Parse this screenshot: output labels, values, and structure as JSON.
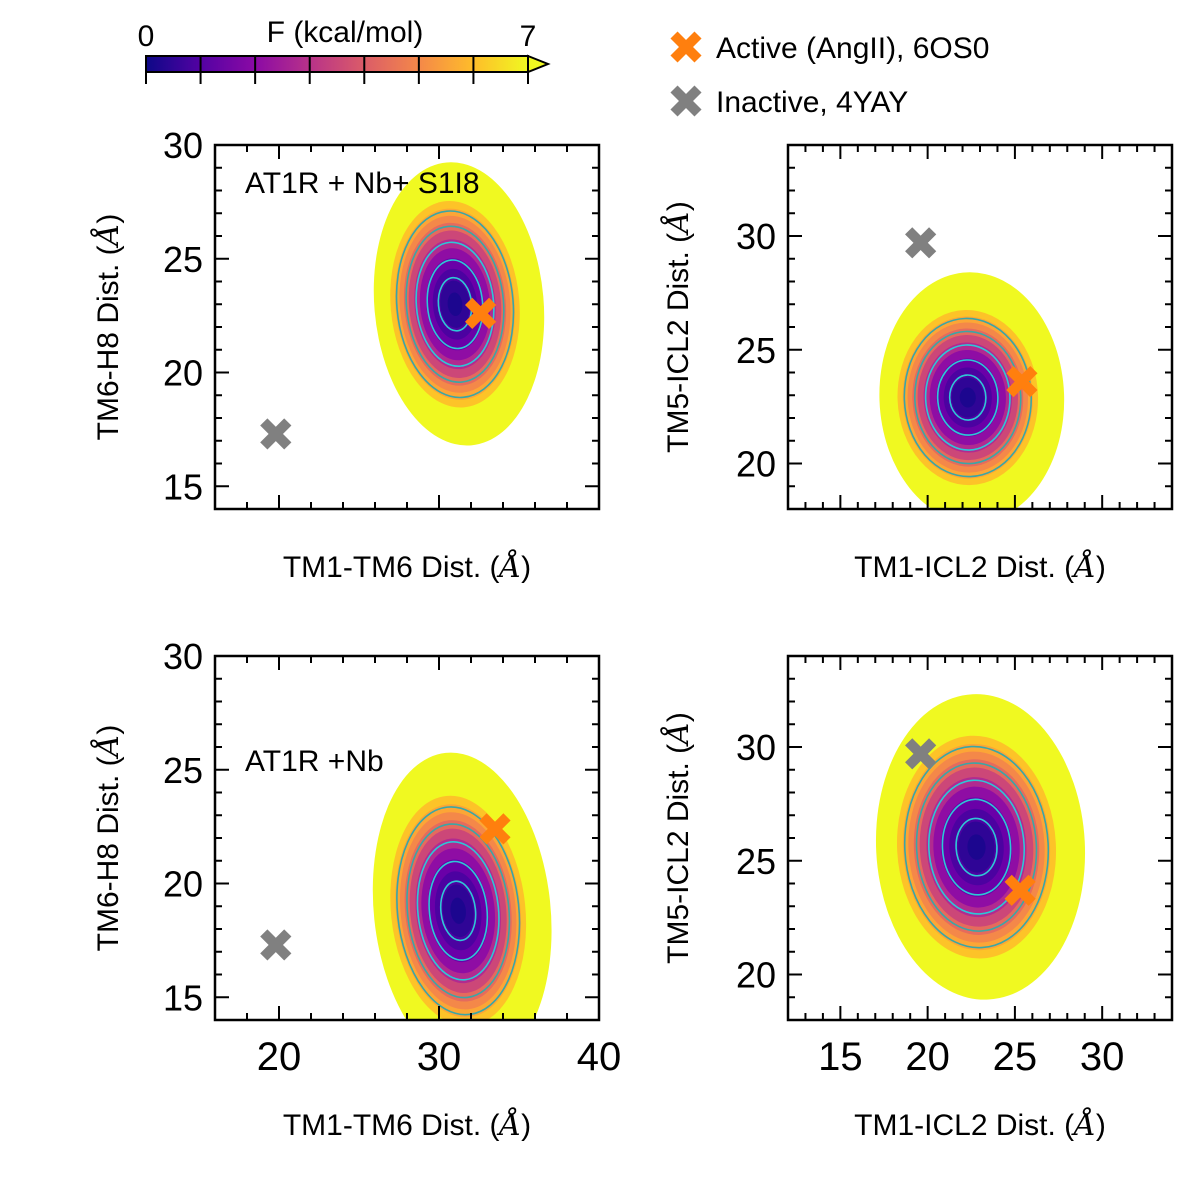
{
  "colorbar": {
    "label": "F (kcal/mol)",
    "min_label": "0",
    "max_label": "7",
    "range": [
      0,
      7
    ],
    "colormap": "plasma",
    "colors": [
      "#0d0887",
      "#5302a3",
      "#8b0aa5",
      "#b83289",
      "#db5c68",
      "#f48849",
      "#febd2a",
      "#f0f921"
    ]
  },
  "legend": {
    "items": [
      {
        "label": "Active (AngII), 6OS0",
        "color": "#ff7f0e",
        "marker": "x-mark-icon"
      },
      {
        "label": "Inactive, 4YAY",
        "color": "#808080",
        "marker": "x-mark-icon"
      }
    ]
  },
  "chart_data": [
    {
      "id": "tl",
      "type": "heatmap",
      "annotation": "AT1R + Nb+ S1I8",
      "xlabel_prefix": "TM1-TM6 Dist. (",
      "xlabel_unit": "Å",
      "xlabel_suffix": ")",
      "ylabel_prefix": "TM6-H8 Dist. (",
      "ylabel_unit": "Å",
      "ylabel_suffix": ")",
      "xlim": [
        16,
        40
      ],
      "ylim": [
        14,
        30
      ],
      "xticks": [
        20,
        30,
        40
      ],
      "xtick_labels": [],
      "yticks": [
        15,
        20,
        25,
        30
      ],
      "ytick_labels": [
        "15",
        "20",
        "25",
        "30"
      ],
      "basin": {
        "center": [
          31,
          23
        ],
        "sigma": [
          2.3,
          2.6
        ],
        "extent": [
          2.3,
          2.4
        ],
        "tilt": 0.25
      },
      "markers": [
        {
          "name": "active-marker",
          "x": 32.6,
          "y": 22.6,
          "color": "#ff7f0e"
        },
        {
          "name": "inactive-marker",
          "x": 19.8,
          "y": 17.3,
          "color": "#808080"
        }
      ]
    },
    {
      "id": "tr",
      "type": "heatmap",
      "annotation": "",
      "xlabel_prefix": "TM1-ICL2 Dist. (",
      "xlabel_unit": "Å",
      "xlabel_suffix": ")",
      "ylabel_prefix": "TM5-ICL2 Dist. (",
      "ylabel_unit": "Å",
      "ylabel_suffix": ")",
      "xlim": [
        12,
        34
      ],
      "ylim": [
        18,
        34
      ],
      "xticks": [
        15,
        20,
        25,
        30
      ],
      "xtick_labels": [],
      "yticks": [
        20,
        25,
        30
      ],
      "ytick_labels": [
        "20",
        "25",
        "30"
      ],
      "basin": {
        "center": [
          22.3,
          22.9
        ],
        "sigma": [
          2.3,
          2.2
        ],
        "extent": [
          2.3,
          2.5
        ],
        "tilt": 0.1
      },
      "markers": [
        {
          "name": "active-marker",
          "x": 25.4,
          "y": 23.6,
          "color": "#ff7f0e"
        },
        {
          "name": "inactive-marker",
          "x": 19.6,
          "y": 29.7,
          "color": "#808080"
        }
      ]
    },
    {
      "id": "bl",
      "type": "heatmap",
      "annotation": "AT1R +Nb",
      "xlabel_prefix": "TM1-TM6 Dist. (",
      "xlabel_unit": "Å",
      "xlabel_suffix": ")",
      "ylabel_prefix": "TM6-H8 Dist. (",
      "ylabel_unit": "Å",
      "ylabel_suffix": ")",
      "xlim": [
        16,
        40
      ],
      "ylim": [
        14,
        30
      ],
      "xticks": [
        20,
        30,
        40
      ],
      "xtick_labels": [
        "20",
        "30",
        "40"
      ],
      "yticks": [
        15,
        20,
        25,
        30
      ],
      "ytick_labels": [
        "15",
        "20",
        "25",
        "30"
      ],
      "basin": {
        "center": [
          31.2,
          18.8
        ],
        "sigma": [
          2.4,
          2.9
        ],
        "extent": [
          2.3,
          2.4
        ],
        "tilt": 0.3
      },
      "markers": [
        {
          "name": "active-marker",
          "x": 33.5,
          "y": 22.4,
          "color": "#ff7f0e"
        },
        {
          "name": "inactive-marker",
          "x": 19.8,
          "y": 17.3,
          "color": "#808080"
        }
      ]
    },
    {
      "id": "br",
      "type": "heatmap",
      "annotation": "",
      "xlabel_prefix": "TM1-ICL2 Dist. (",
      "xlabel_unit": "Å",
      "xlabel_suffix": ")",
      "ylabel_prefix": "TM5-ICL2 Dist. (",
      "ylabel_unit": "Å",
      "ylabel_suffix": ")",
      "xlim": [
        12,
        34
      ],
      "ylim": [
        18,
        34
      ],
      "xticks": [
        15,
        20,
        25,
        30
      ],
      "xtick_labels": [
        "15",
        "20",
        "25",
        "30"
      ],
      "yticks": [
        20,
        25,
        30
      ],
      "ytick_labels": [
        "20",
        "25",
        "30"
      ],
      "basin": {
        "center": [
          22.8,
          25.6
        ],
        "sigma": [
          2.6,
          2.8
        ],
        "extent": [
          2.3,
          2.4
        ],
        "tilt": 0.15
      },
      "markers": [
        {
          "name": "active-marker",
          "x": 25.3,
          "y": 23.7,
          "color": "#ff7f0e"
        },
        {
          "name": "inactive-marker",
          "x": 19.6,
          "y": 29.7,
          "color": "#808080"
        }
      ]
    }
  ]
}
